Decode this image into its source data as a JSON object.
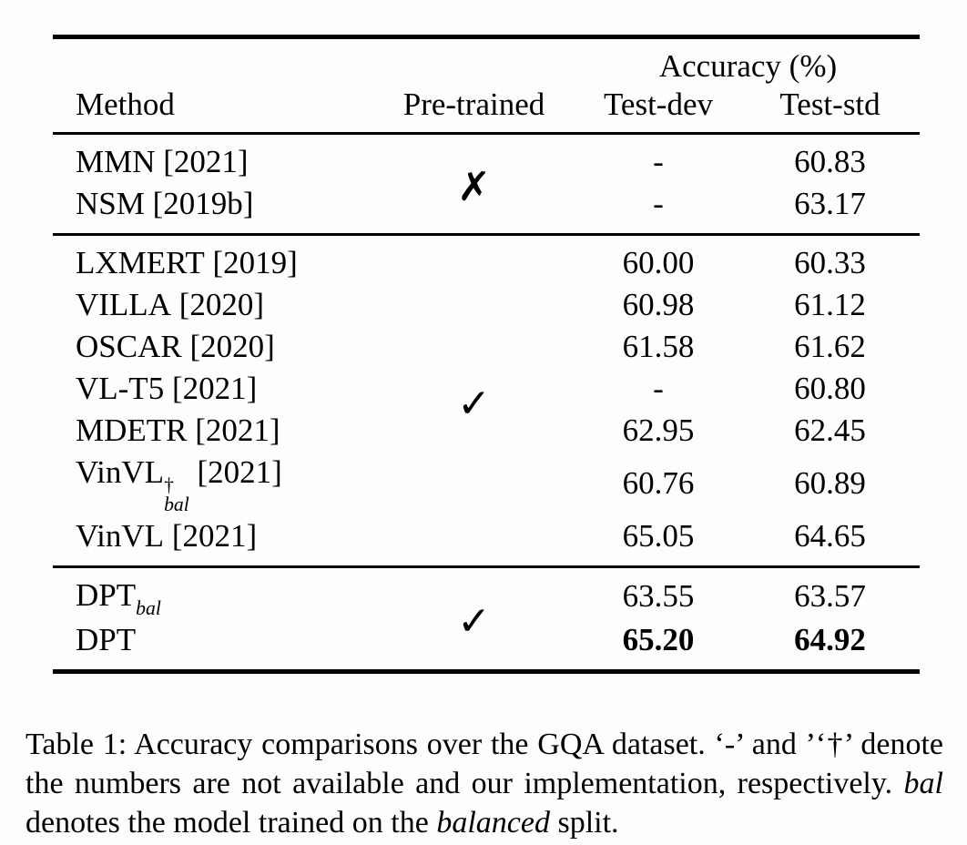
{
  "colors": {
    "background": "#fdfdfd",
    "text": "#000000",
    "rule": "#000000"
  },
  "table": {
    "header": {
      "method": "Method",
      "pretrained": "Pre-trained",
      "accuracy_group": "Accuracy (%)",
      "test_dev": "Test-dev",
      "test_std": "Test-std"
    },
    "groups": [
      {
        "pretrained_mark": "✗",
        "rows": [
          {
            "method_base": "MMN",
            "method_suffix": " [2021]",
            "test_dev": "-",
            "test_std": "60.83"
          },
          {
            "method_base": "NSM",
            "method_suffix": " [2019b]",
            "test_dev": "-",
            "test_std": "63.17"
          }
        ]
      },
      {
        "pretrained_mark": "✓",
        "rows": [
          {
            "method_base": "LXMERT",
            "method_suffix": " [2019]",
            "test_dev": "60.00",
            "test_std": "60.33"
          },
          {
            "method_base": "VILLA",
            "method_suffix": " [2020]",
            "test_dev": "60.98",
            "test_std": "61.12"
          },
          {
            "method_base": "OSCAR",
            "method_suffix": " [2020]",
            "test_dev": "61.58",
            "test_std": "61.62"
          },
          {
            "method_base": "VL-T5",
            "method_suffix": " [2021]",
            "test_dev": "-",
            "test_std": "60.80"
          },
          {
            "method_base": "MDETR",
            "method_suffix": " [2021]",
            "test_dev": "62.95",
            "test_std": "62.45"
          },
          {
            "method_base": "VinVL",
            "method_sup": "†",
            "method_sub": "bal",
            "method_suffix": " [2021]",
            "test_dev": "60.76",
            "test_std": "60.89"
          },
          {
            "method_base": "VinVL",
            "method_suffix": " [2021]",
            "test_dev": "65.05",
            "test_std": "64.65"
          }
        ]
      },
      {
        "pretrained_mark": "✓",
        "rows": [
          {
            "method_base": "DPT",
            "method_sub": "bal",
            "method_suffix": "",
            "test_dev": "63.55",
            "test_std": "63.57"
          },
          {
            "method_base": "DPT",
            "method_suffix": "",
            "test_dev": "65.20",
            "test_std": "64.92"
          }
        ]
      }
    ]
  },
  "caption": {
    "text1": "Table 1: Accuracy comparisons over the GQA dataset. ‘-’ and ’‘†’ denote the numbers are not available and our implementation, respectively. ",
    "italic1": "bal",
    "text2": " denotes the model trained on the ",
    "italic2": "balanced",
    "text3": " split."
  }
}
